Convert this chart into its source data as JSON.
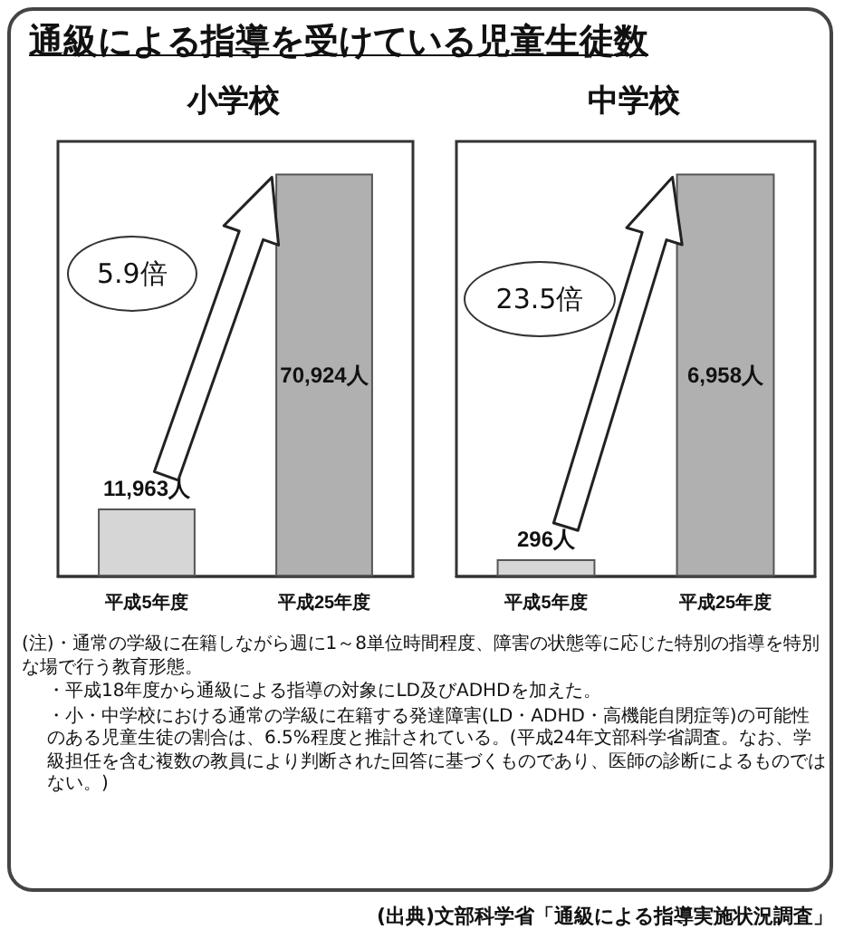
{
  "chart_data": [
    {
      "type": "bar",
      "title": "通級による指導を受けている児童生徒数",
      "subtitle": "小学校",
      "categories": [
        "平成5年度",
        "平成25年度"
      ],
      "values": [
        11963,
        70924
      ],
      "value_labels": [
        "11,963人",
        "70,924人"
      ],
      "colors": [
        "#d6d6d6",
        "#b0b0b0"
      ],
      "annotations": [
        "5.9倍"
      ]
    },
    {
      "type": "bar",
      "subtitle": "中学校",
      "categories": [
        "平成5年度",
        "平成25年度"
      ],
      "values": [
        296,
        6958
      ],
      "value_labels": [
        "296人",
        "6,958人"
      ],
      "colors": [
        "#d6d6d6",
        "#b0b0b0"
      ],
      "annotations": [
        "23.5倍",
        "(注)・通常の学級に在籍しながら週に1～8単位時間程度、障害の状態等に応じた特別の指導を特別な場で行う教育形態。",
        "・平成18年度から通級による指導の対象にLD及びADHDを加えた。",
        "・小・中学校における通常の学級に在籍する発達障害(LD・ADHD・高機能自閉症等)の可能性のある児童生徒の割合は、6.5%程度と推計されている。(平成24年文部科学省調査。なお、学級担任を含む複数の教員により判断された回答に基づくものであり、医師の診断によるものではない。)",
        "(出典)文部科学省「通級による指導実施状況調査」"
      ]
    }
  ]
}
